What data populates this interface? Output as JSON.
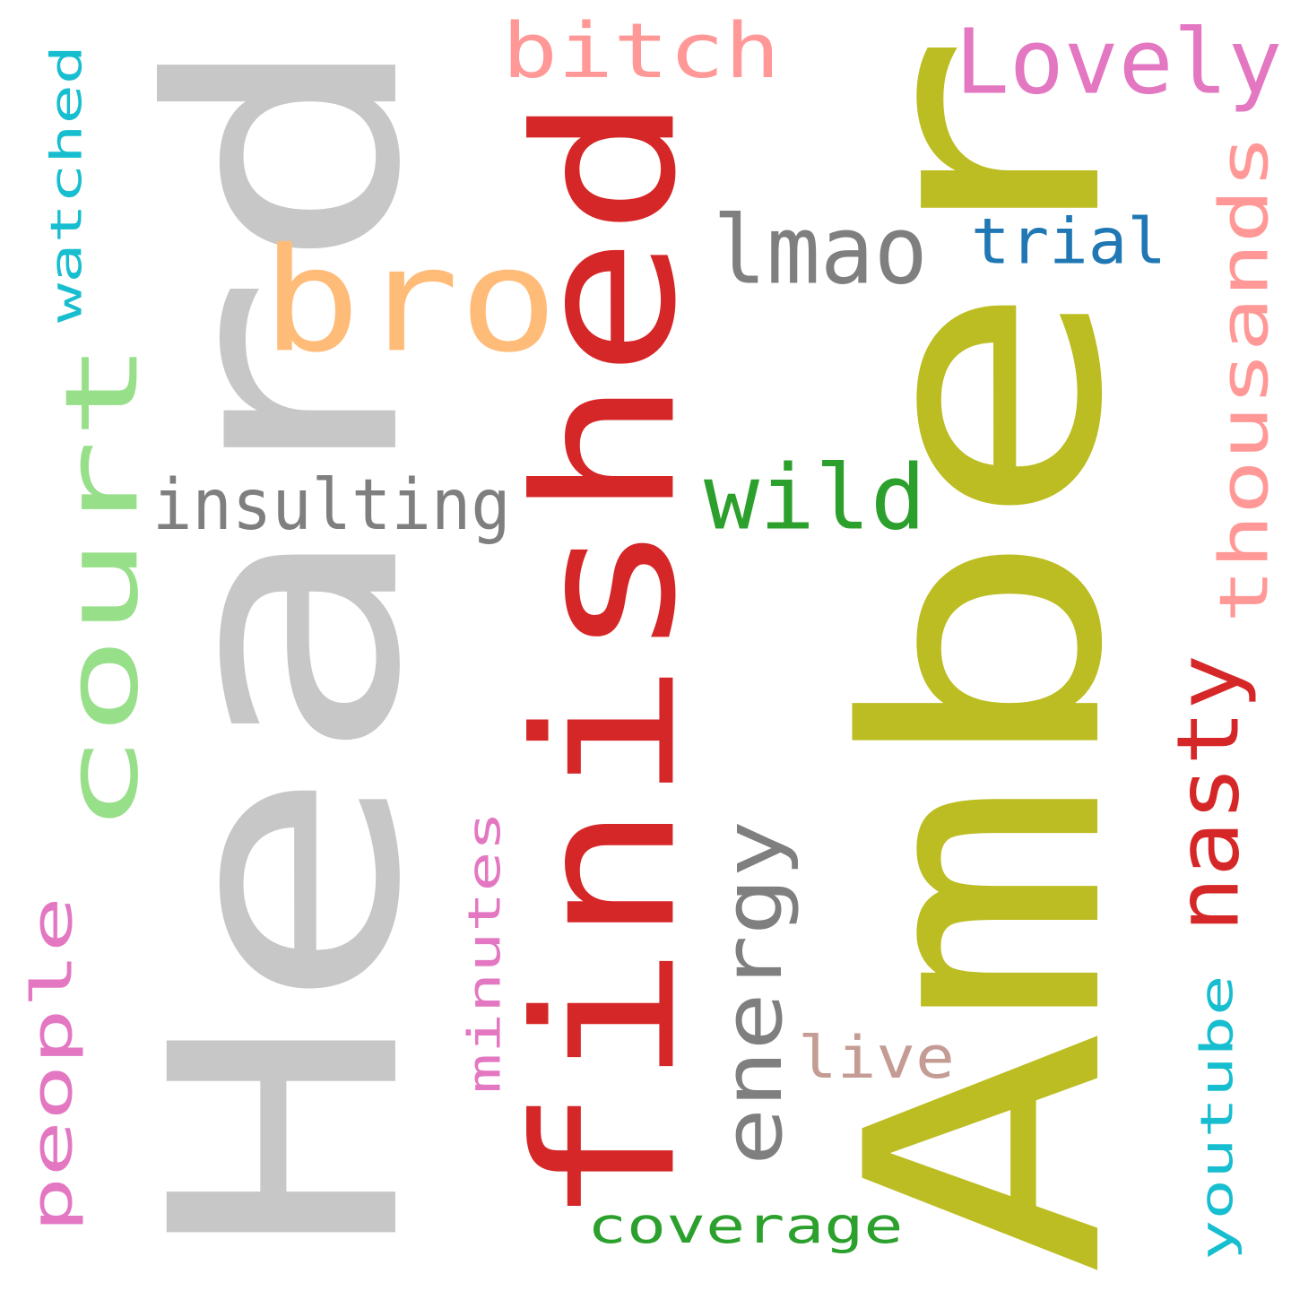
{
  "words": [
    {
      "id": "amber",
      "text": "Amber",
      "color": "#bcbd22",
      "orientation": "vertical"
    },
    {
      "id": "heard",
      "text": "Heard",
      "color": "#c7c7c7",
      "orientation": "vertical"
    },
    {
      "id": "finished",
      "text": "finished",
      "color": "#d62728",
      "orientation": "vertical"
    },
    {
      "id": "court",
      "text": "court",
      "color": "#98df8a",
      "orientation": "vertical"
    },
    {
      "id": "bro",
      "text": "bro",
      "color": "#ffbb78",
      "orientation": "horizontal"
    },
    {
      "id": "bitch",
      "text": "bitch",
      "color": "#ff9896",
      "orientation": "horizontal"
    },
    {
      "id": "lovely",
      "text": "Lovely",
      "color": "#e377c2",
      "orientation": "horizontal"
    },
    {
      "id": "lmao",
      "text": "lmao",
      "color": "#7f7f7f",
      "orientation": "horizontal"
    },
    {
      "id": "trial",
      "text": "trial",
      "color": "#1f77b4",
      "orientation": "horizontal"
    },
    {
      "id": "thousands",
      "text": "thousands",
      "color": "#ff9896",
      "orientation": "vertical"
    },
    {
      "id": "watched",
      "text": "watched",
      "color": "#17becf",
      "orientation": "vertical"
    },
    {
      "id": "insulting",
      "text": "insulting",
      "color": "#7f7f7f",
      "orientation": "horizontal"
    },
    {
      "id": "wild",
      "text": "wild",
      "color": "#2ca02c",
      "orientation": "horizontal"
    },
    {
      "id": "nasty",
      "text": "nasty",
      "color": "#d62728",
      "orientation": "vertical"
    },
    {
      "id": "energy",
      "text": "energy",
      "color": "#7f7f7f",
      "orientation": "vertical"
    },
    {
      "id": "minutes",
      "text": "minutes",
      "color": "#e377c2",
      "orientation": "vertical"
    },
    {
      "id": "people",
      "text": "people",
      "color": "#e377c2",
      "orientation": "vertical"
    },
    {
      "id": "live",
      "text": "live",
      "color": "#c49c94",
      "orientation": "horizontal"
    },
    {
      "id": "youtube",
      "text": "youtube",
      "color": "#17becf",
      "orientation": "vertical"
    },
    {
      "id": "coverage",
      "text": "coverage",
      "color": "#2ca02c",
      "orientation": "horizontal"
    }
  ]
}
